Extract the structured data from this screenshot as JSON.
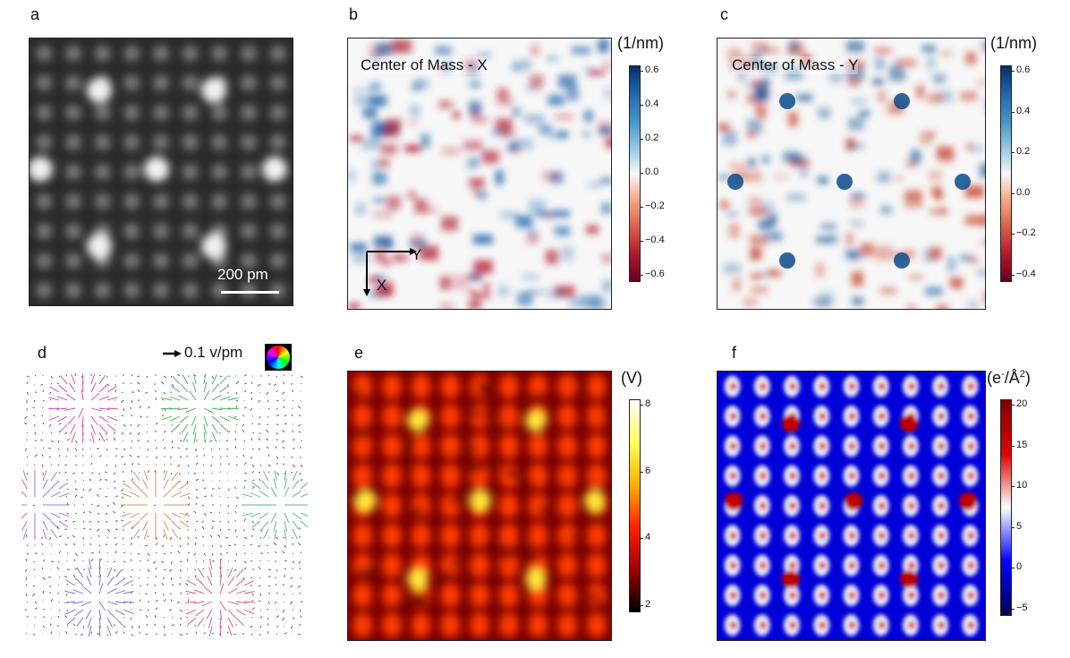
{
  "panels": {
    "a": {
      "label": "a",
      "scalebar": "200 pm"
    },
    "b": {
      "label": "b",
      "title": "Center of Mass - X",
      "unit": "(1/nm)",
      "ticks": [
        "0.6",
        "0.4",
        "0.2",
        "0.0",
        "−0.2",
        "−0.4",
        "−0.6"
      ],
      "axis_y": "Y",
      "axis_x": "X"
    },
    "c": {
      "label": "c",
      "title": "Center of Mass - Y",
      "unit": "(1/nm)",
      "ticks": [
        "0.6",
        "0.4",
        "0.2",
        "0.0",
        "−0.2",
        "−0.4"
      ]
    },
    "d": {
      "label": "d",
      "legend": "0.1 v/pm"
    },
    "e": {
      "label": "e",
      "unit": "(V)",
      "ticks": [
        "8",
        "6",
        "4",
        "2"
      ]
    },
    "f": {
      "label": "f",
      "unit_base": "(e",
      "unit_sup1": "-",
      "unit_mid": "/Å",
      "unit_sup2": "2",
      "unit_end": ")",
      "ticks": [
        "20",
        "15",
        "10",
        "5",
        "0",
        "−5"
      ]
    }
  },
  "colors": {
    "rdbu_neg": "#67001f",
    "rdbu_pos": "#053061",
    "hot_low": "#000000",
    "hot_high": "#ffffff",
    "seismic_low": "#00004d",
    "seismic_high": "#800000"
  }
}
